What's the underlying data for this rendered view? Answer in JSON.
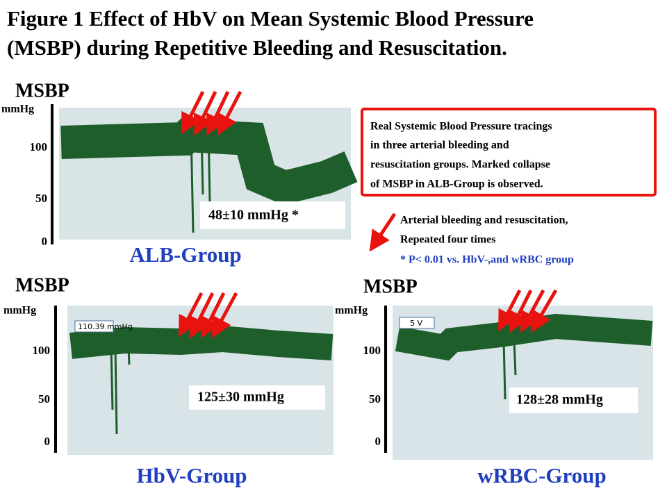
{
  "header": {
    "title_lines": [
      "Figure 1   Effect of HbV on Mean Systemic Blood Pressure",
      "(MSBP) during Repetitive Bleeding and Resuscitation."
    ]
  },
  "panels": [
    {
      "axis_title": "MSBP",
      "unit": "mmHg",
      "ticks": [
        "100",
        "50",
        "0"
      ],
      "value_box": "48±10 mmHg *",
      "group": "ALB-Group"
    },
    {
      "axis_title": "MSBP",
      "unit": "mmHg",
      "ticks": [
        "100",
        "50",
        "0"
      ],
      "value_box": "125±30 mmHg",
      "group": "HbV-Group",
      "screen_label": "110.39 mmHg"
    },
    {
      "axis_title": "MSBP",
      "unit": "mmHg",
      "ticks": [
        "100",
        "50",
        "0"
      ],
      "value_box": "128±28 mmHg",
      "group": "wRBC-Group",
      "screen_label": "5 V"
    }
  ],
  "note": {
    "lines": [
      "Real Systemic Blood Pressure tracings",
      "in three arterial bleeding and",
      "resuscitation groups. Marked collapse",
      "of MSBP in ALB-Group is observed."
    ]
  },
  "legend": {
    "lines": [
      "Arterial bleeding and resuscitation,",
      "Repeated four times"
    ],
    "significance": "* P< 0.01 vs. HbV-,and wRBC group"
  }
}
